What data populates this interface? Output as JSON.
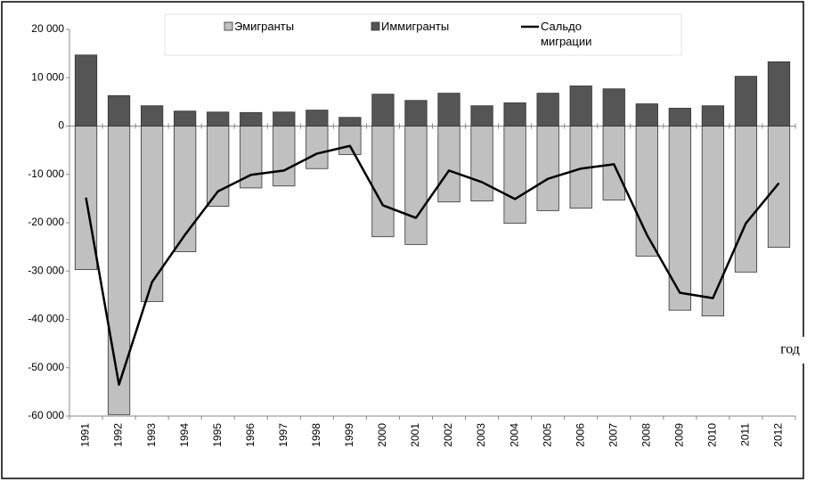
{
  "chart_data": {
    "type": "bar",
    "x_label": "год",
    "categories": [
      "1991",
      "1992",
      "1993",
      "1994",
      "1995",
      "1996",
      "1997",
      "1998",
      "1999",
      "2000",
      "2001",
      "2002",
      "2003",
      "2004",
      "2005",
      "2006",
      "2007",
      "2008",
      "2009",
      "2010",
      "2011",
      "2012"
    ],
    "series": [
      {
        "name": "Эмигранты",
        "type": "bar",
        "color": "#c0c0c0",
        "values": [
          -29700,
          -59700,
          -36300,
          -26000,
          -16600,
          -12800,
          -12400,
          -8800,
          -5900,
          -22900,
          -24500,
          -15700,
          -15500,
          -20100,
          -17500,
          -17000,
          -15300,
          -26900,
          -38100,
          -39300,
          -30200,
          -25100
        ]
      },
      {
        "name": "Иммигранты",
        "type": "bar",
        "color": "#555555",
        "values": [
          14700,
          6300,
          4200,
          3100,
          2900,
          2800,
          2900,
          3300,
          1800,
          6600,
          5300,
          6800,
          4200,
          4800,
          6800,
          8300,
          7700,
          4600,
          3700,
          4200,
          10300,
          13300
        ]
      },
      {
        "name": "Сальдо миграции",
        "type": "line",
        "color": "#000000",
        "values": [
          -14800,
          -53500,
          -32300,
          -22500,
          -13500,
          -10100,
          -9200,
          -5700,
          -4100,
          -16400,
          -19000,
          -9200,
          -11600,
          -15100,
          -10900,
          -8800,
          -7900,
          -22500,
          -34500,
          -35600,
          -20100,
          -11800
        ]
      }
    ],
    "ylim": [
      -60000,
      20000
    ],
    "yticks": [
      {
        "value": -60000,
        "label": "-60 000"
      },
      {
        "value": -50000,
        "label": "-50 000"
      },
      {
        "value": -40000,
        "label": "-40 000"
      },
      {
        "value": -30000,
        "label": "-30 000"
      },
      {
        "value": -20000,
        "label": "-20 000"
      },
      {
        "value": -10000,
        "label": "-10 000"
      },
      0,
      {
        "value": 10000,
        "label": "10 000"
      },
      {
        "value": 20000,
        "label": "20 000"
      }
    ],
    "grid": false,
    "legend": "top"
  }
}
